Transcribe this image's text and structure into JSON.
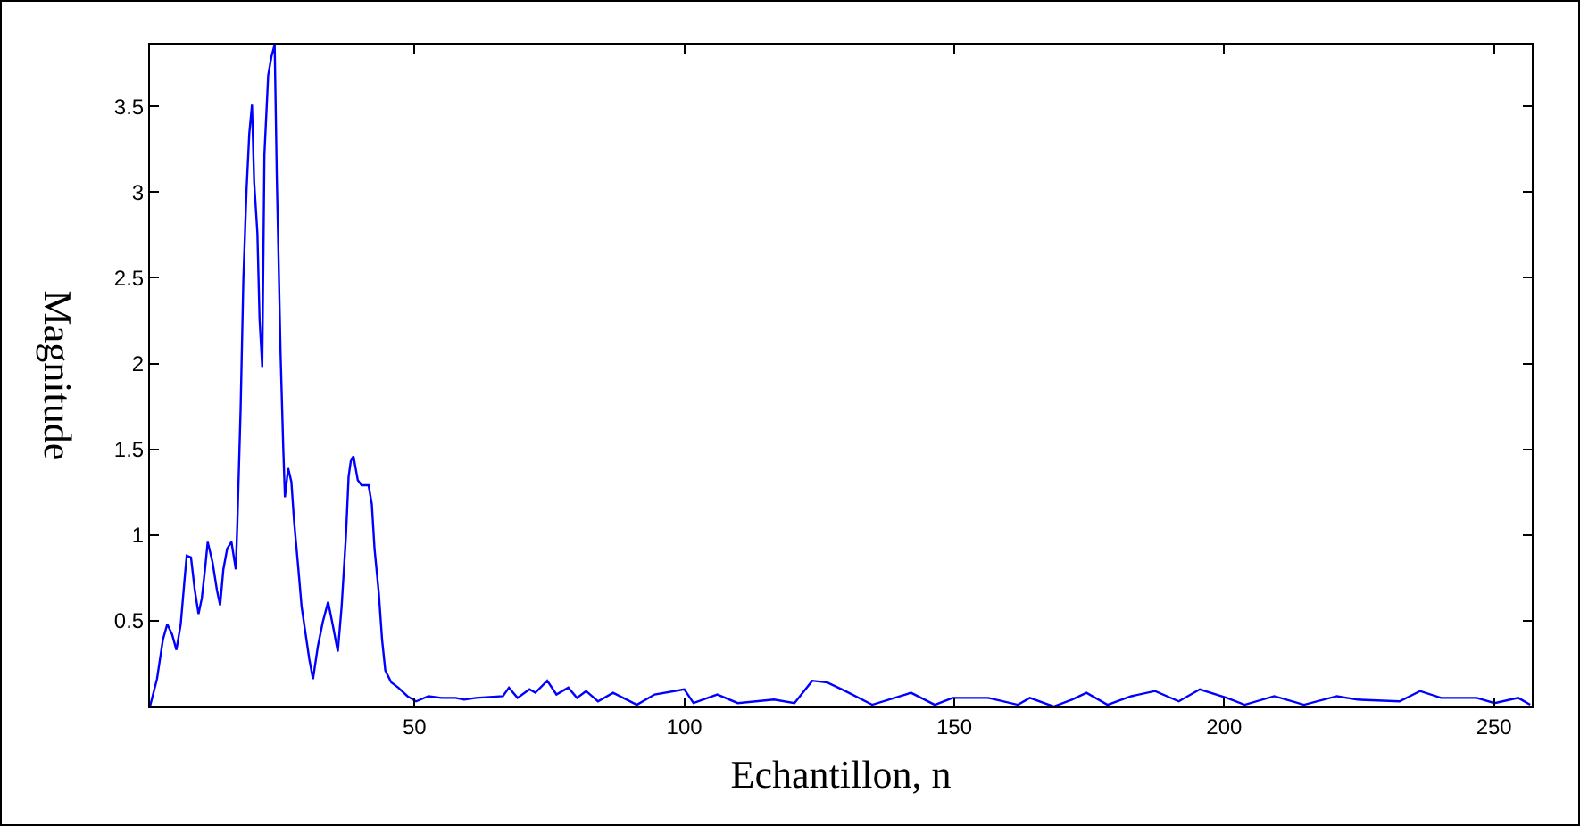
{
  "chart_data": {
    "type": "line",
    "xlabel": "Echantillon, n",
    "ylabel": "Magnitude",
    "xlim": [
      1,
      257
    ],
    "ylim": [
      0,
      3.86
    ],
    "xticks": [
      50,
      100,
      150,
      200,
      250
    ],
    "yticks": [
      0.5,
      1,
      1.5,
      2,
      2.5,
      3,
      3.5
    ],
    "marker": "none",
    "line_style": "solid",
    "series": [
      {
        "color": "#0000ff",
        "x": [
          1,
          2.3,
          3.4,
          4.2,
          5.1,
          5.9,
          6.7,
          7.3,
          7.8,
          8.6,
          9.3,
          10,
          10.6,
          11.2,
          11.7,
          12.6,
          13.4,
          14,
          14.6,
          15.3,
          16.1,
          16.9,
          17.2,
          17.8,
          18.3,
          18.9,
          19.4,
          19.9,
          20.3,
          20.9,
          21.3,
          21.8,
          22.2,
          22.9,
          23.5,
          24.1,
          24.5,
          25.2,
          25.7,
          26,
          26.6,
          27.2,
          27.7,
          28.5,
          29.1,
          30.5,
          31.2,
          32.1,
          33,
          34,
          34.9,
          35.8,
          36.5,
          37.3,
          37.8,
          38.2,
          38.7,
          39.5,
          40.2,
          41.5,
          42.1,
          42.6,
          43.4,
          44,
          44.6,
          45.7,
          47,
          48.7,
          50.3,
          52.6,
          55,
          57.6,
          59.2,
          61.4,
          66.4,
          67.5,
          69.1,
          71.3,
          72.4,
          74.6,
          76.3,
          78.5,
          80.1,
          81.8,
          84,
          86.8,
          91.2,
          94.5,
          100,
          101.7,
          106.1,
          109.9,
          116.6,
          120.4,
          123.7,
          126.5,
          129.8,
          134.8,
          142,
          146.4,
          149.7,
          151.9,
          156.3,
          161.8,
          164,
          168.4,
          171.8,
          174.5,
          178.4,
          182.8,
          187.2,
          191.6,
          195.5,
          200.5,
          203.8,
          209.3,
          214.8,
          220.9,
          224.7,
          232.5,
          236.3,
          240.2,
          246.8,
          250.1,
          254.5,
          256.7
        ],
        "values": [
          0,
          0.16,
          0.39,
          0.48,
          0.42,
          0.33,
          0.48,
          0.7,
          0.88,
          0.87,
          0.68,
          0.54,
          0.63,
          0.8,
          0.96,
          0.84,
          0.68,
          0.59,
          0.8,
          0.92,
          0.96,
          0.8,
          1.08,
          1.74,
          2.49,
          3.02,
          3.34,
          3.51,
          3.06,
          2.76,
          2.26,
          1.98,
          3.22,
          3.68,
          3.79,
          3.86,
          3.08,
          2.05,
          1.5,
          1.22,
          1.39,
          1.31,
          1.08,
          0.8,
          0.58,
          0.28,
          0.16,
          0.35,
          0.49,
          0.61,
          0.47,
          0.32,
          0.58,
          0.99,
          1.34,
          1.43,
          1.46,
          1.32,
          1.29,
          1.29,
          1.18,
          0.92,
          0.66,
          0.39,
          0.21,
          0.14,
          0.11,
          0.06,
          0.03,
          0.06,
          0.05,
          0.05,
          0.04,
          0.05,
          0.06,
          0.11,
          0.05,
          0.1,
          0.08,
          0.15,
          0.07,
          0.11,
          0.05,
          0.09,
          0.03,
          0.08,
          0.01,
          0.07,
          0.1,
          0.02,
          0.07,
          0.02,
          0.04,
          0.02,
          0.15,
          0.14,
          0.09,
          0.01,
          0.08,
          0.01,
          0.05,
          0.05,
          0.05,
          0.01,
          0.05,
          0,
          0.04,
          0.08,
          0.01,
          0.06,
          0.09,
          0.03,
          0.1,
          0.05,
          0.01,
          0.06,
          0.01,
          0.06,
          0.04,
          0.03,
          0.09,
          0.05,
          0.05,
          0.02,
          0.05,
          0.01
        ]
      }
    ]
  }
}
